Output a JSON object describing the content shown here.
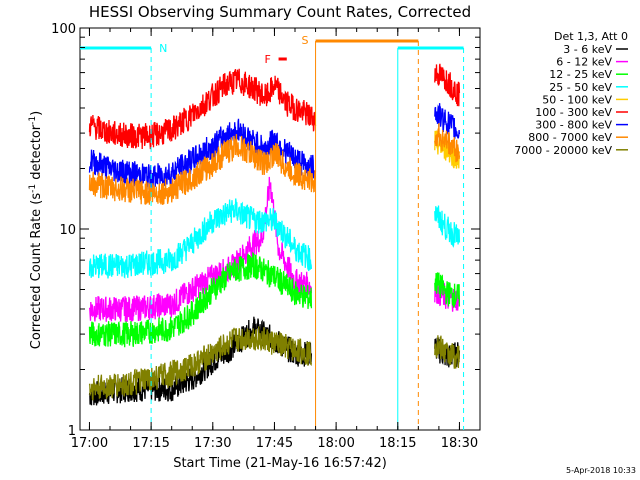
{
  "chart_data": {
    "type": "line",
    "title": "HESSI Observing Summary Count Rates, Corrected",
    "xlabel": "Start Time (21-May-16 16:57:42)",
    "ylabel": "Corrected Count Rate (s",
    "ylabel_sup": "-1",
    "ylabel_tail": " detector",
    "ylabel_tail_sup": "-1",
    "ylabel_close": ")",
    "y_scale": "log",
    "ylim": [
      1,
      100
    ],
    "xlim": [
      "16:57:42",
      "18:35:00"
    ],
    "x_ticks": [
      {
        "t": "17:00",
        "label": "17:00"
      },
      {
        "t": "17:15",
        "label": "17:15"
      },
      {
        "t": "17:30",
        "label": "17:30"
      },
      {
        "t": "17:45",
        "label": "17:45"
      },
      {
        "t": "18:00",
        "label": "18:00"
      },
      {
        "t": "18:15",
        "label": "18:15"
      },
      {
        "t": "18:30",
        "label": "18:30"
      }
    ],
    "y_ticks": [
      {
        "v": 1,
        "label": "1"
      },
      {
        "v": 10,
        "label": "10"
      },
      {
        "v": 100,
        "label": "100"
      }
    ],
    "legend_header": "Det 1,3, Att 0",
    "legend_placement": "right",
    "series": [
      {
        "name": "3 - 6 keV",
        "color": "#000000",
        "points": [
          [
            "17:00",
            1.5
          ],
          [
            "17:10",
            1.6
          ],
          [
            "17:20",
            1.6
          ],
          [
            "17:25",
            1.8
          ],
          [
            "17:30",
            2.2
          ],
          [
            "17:35",
            2.6
          ],
          [
            "17:40",
            3.2
          ],
          [
            "17:45",
            2.8
          ],
          [
            "17:50",
            2.4
          ],
          [
            "17:54",
            2.4
          ],
          [
            "18:24",
            2.6
          ],
          [
            "18:27",
            2.3
          ],
          [
            "18:30",
            2.4
          ]
        ]
      },
      {
        "name": "6 - 12 keV",
        "color": "#ff00ff",
        "points": [
          [
            "17:00",
            4.0
          ],
          [
            "17:10",
            4.0
          ],
          [
            "17:20",
            4.2
          ],
          [
            "17:25",
            5.0
          ],
          [
            "17:30",
            5.8
          ],
          [
            "17:35",
            6.5
          ],
          [
            "17:40",
            8.5
          ],
          [
            "17:42",
            9.0
          ],
          [
            "17:44",
            17.0
          ],
          [
            "17:46",
            8.0
          ],
          [
            "17:50",
            5.5
          ],
          [
            "17:54",
            5.2
          ],
          [
            "18:24",
            5.0
          ],
          [
            "18:27",
            4.5
          ],
          [
            "18:30",
            4.5
          ]
        ]
      },
      {
        "name": "12 - 25 keV",
        "color": "#00ff00",
        "points": [
          [
            "17:00",
            3.0
          ],
          [
            "17:10",
            3.0
          ],
          [
            "17:20",
            3.2
          ],
          [
            "17:25",
            3.8
          ],
          [
            "17:30",
            5.0
          ],
          [
            "17:35",
            6.2
          ],
          [
            "17:40",
            6.6
          ],
          [
            "17:45",
            5.8
          ],
          [
            "17:50",
            4.8
          ],
          [
            "17:54",
            4.5
          ],
          [
            "18:24",
            5.5
          ],
          [
            "18:27",
            4.8
          ],
          [
            "18:30",
            4.6
          ]
        ]
      },
      {
        "name": "25 - 50 keV",
        "color": "#00ffff",
        "points": [
          [
            "17:00",
            6.5
          ],
          [
            "17:10",
            6.6
          ],
          [
            "17:20",
            7.0
          ],
          [
            "17:25",
            8.5
          ],
          [
            "17:30",
            11.0
          ],
          [
            "17:35",
            12.5
          ],
          [
            "17:40",
            11.0
          ],
          [
            "17:45",
            11.0
          ],
          [
            "17:50",
            8.0
          ],
          [
            "17:54",
            7.0
          ],
          [
            "18:24",
            12.0
          ],
          [
            "18:27",
            10.0
          ],
          [
            "18:30",
            9.0
          ]
        ]
      },
      {
        "name": "50 - 100 keV",
        "color": "#ffcc00",
        "points": [
          [
            "18:24",
            27.0
          ],
          [
            "18:27",
            25.0
          ],
          [
            "18:30",
            22.0
          ]
        ]
      },
      {
        "name": "100 - 300 keV",
        "color": "#ff0000",
        "points": [
          [
            "17:00",
            33.0
          ],
          [
            "17:05",
            30.0
          ],
          [
            "17:10",
            29.0
          ],
          [
            "17:15",
            29.0
          ],
          [
            "17:20",
            31.0
          ],
          [
            "17:25",
            37.0
          ],
          [
            "17:30",
            46.0
          ],
          [
            "17:33",
            52.0
          ],
          [
            "17:36",
            55.0
          ],
          [
            "17:40",
            50.0
          ],
          [
            "17:43",
            45.0
          ],
          [
            "17:45",
            52.0
          ],
          [
            "17:48",
            42.0
          ],
          [
            "17:52",
            38.0
          ],
          [
            "17:55",
            35.0
          ],
          [
            "18:24",
            60.0
          ],
          [
            "18:27",
            55.0
          ],
          [
            "18:30",
            46.0
          ]
        ]
      },
      {
        "name": "300 - 800 keV",
        "color": "#0000ff",
        "points": [
          [
            "17:00",
            22.0
          ],
          [
            "17:05",
            20.0
          ],
          [
            "17:10",
            19.0
          ],
          [
            "17:15",
            18.0
          ],
          [
            "17:20",
            19.0
          ],
          [
            "17:25",
            22.0
          ],
          [
            "17:30",
            26.0
          ],
          [
            "17:33",
            29.0
          ],
          [
            "17:36",
            31.0
          ],
          [
            "17:40",
            27.0
          ],
          [
            "17:43",
            25.0
          ],
          [
            "17:45",
            28.0
          ],
          [
            "17:48",
            24.0
          ],
          [
            "17:52",
            21.0
          ],
          [
            "17:55",
            20.0
          ],
          [
            "18:24",
            38.0
          ],
          [
            "18:27",
            34.0
          ],
          [
            "18:30",
            30.0
          ]
        ]
      },
      {
        "name": "800 - 7000 keV",
        "color": "#ff8800",
        "points": [
          [
            "17:00",
            17.0
          ],
          [
            "17:05",
            16.0
          ],
          [
            "17:10",
            15.5
          ],
          [
            "17:15",
            15.0
          ],
          [
            "17:20",
            15.5
          ],
          [
            "17:25",
            18.0
          ],
          [
            "17:30",
            21.0
          ],
          [
            "17:33",
            24.0
          ],
          [
            "17:36",
            26.0
          ],
          [
            "17:40",
            23.0
          ],
          [
            "17:43",
            21.0
          ],
          [
            "17:45",
            24.0
          ],
          [
            "17:48",
            20.0
          ],
          [
            "17:52",
            18.0
          ],
          [
            "17:55",
            17.0
          ],
          [
            "18:24",
            30.0
          ],
          [
            "18:27",
            27.0
          ],
          [
            "18:30",
            24.0
          ]
        ]
      },
      {
        "name": "7000 - 20000 keV",
        "color": "#808000",
        "points": [
          [
            "17:00",
            1.6
          ],
          [
            "17:10",
            1.7
          ],
          [
            "17:20",
            1.9
          ],
          [
            "17:25",
            2.1
          ],
          [
            "17:30",
            2.4
          ],
          [
            "17:35",
            2.8
          ],
          [
            "17:40",
            2.9
          ],
          [
            "17:45",
            2.7
          ],
          [
            "17:50",
            2.5
          ],
          [
            "17:54",
            2.4
          ],
          [
            "18:24",
            2.7
          ],
          [
            "18:27",
            2.4
          ],
          [
            "18:30",
            2.3
          ]
        ]
      }
    ],
    "annotations": {
      "night": {
        "label": "N",
        "color": "#00ffff",
        "bars": [
          [
            "16:57:42",
            "17:15"
          ],
          [
            "18:15",
            "18:31"
          ]
        ],
        "boundaries": [
          "17:15",
          "18:31"
        ]
      },
      "saa": {
        "label": "S",
        "color": "#ff8800",
        "bar": [
          "17:55",
          "18:20"
        ],
        "boundaries": [
          "18:20"
        ]
      },
      "flare": {
        "label": "F",
        "color": "#ff0000",
        "bar": [
          "17:46",
          "17:48"
        ]
      },
      "night_region_lines": [
        "18:15"
      ],
      "saa_region_line": "17:55"
    }
  },
  "timestamp": "5-Apr-2018 10:33"
}
